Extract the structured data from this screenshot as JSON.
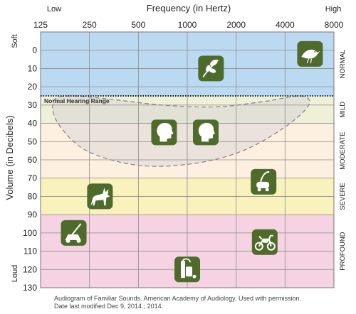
{
  "chart_data": {
    "type": "scatter",
    "title": "Frequency (in Hertz)",
    "ylabel": "Volume (in Decibels)",
    "x_scale": "log2",
    "x_ticks": [
      125,
      250,
      500,
      1000,
      2000,
      4000,
      8000
    ],
    "x_tick_labels": [
      "125",
      "250",
      "500",
      "1000",
      "2000",
      "4000",
      "8000"
    ],
    "x_end_labels": {
      "low": "Low",
      "high": "High"
    },
    "y_ticks": [
      0,
      10,
      20,
      30,
      40,
      50,
      60,
      70,
      80,
      90,
      100,
      110,
      120,
      130
    ],
    "y_tick_labels": [
      "0",
      "10",
      "20",
      "30",
      "40",
      "50",
      "60",
      "70",
      "80",
      "90",
      "100",
      "110",
      "120",
      "130"
    ],
    "y_end_labels": {
      "top": "Soft",
      "bottom": "Loud"
    },
    "ylim": [
      -10,
      130
    ],
    "xlim": [
      125,
      8000
    ],
    "y_inverted": true,
    "grid": true,
    "zones": [
      {
        "label": "NORMAL",
        "from": -10,
        "to": 25,
        "color": "#bcd9f2"
      },
      {
        "label": "MILD",
        "from": 25,
        "to": 40,
        "color": "#eef0d8"
      },
      {
        "label": "MODERATE",
        "from": 40,
        "to": 70,
        "color": "#fdf0e1"
      },
      {
        "label": "SEVERE",
        "from": 70,
        "to": 90,
        "color": "#f9f2bd"
      },
      {
        "label": "PROFOUND",
        "from": 90,
        "to": 130,
        "color": "#f6d3e2"
      }
    ],
    "threshold_line_db": 25,
    "normal_range": {
      "label": "Normal Hearing Range",
      "outline": [
        [
          190,
          25
        ],
        [
          150,
          28
        ],
        [
          160,
          40
        ],
        [
          240,
          55
        ],
        [
          500,
          63
        ],
        [
          1100,
          62
        ],
        [
          2200,
          55
        ],
        [
          4000,
          42
        ],
        [
          5600,
          30
        ],
        [
          5000,
          25
        ],
        [
          3000,
          28
        ],
        [
          1500,
          31
        ],
        [
          700,
          30
        ],
        [
          350,
          27
        ]
      ]
    },
    "points": [
      {
        "name": "birds-chirping",
        "icon": "leaf-icon",
        "x": 1400,
        "y": 10
      },
      {
        "name": "bird",
        "icon": "bird-icon",
        "x": 5700,
        "y": 2
      },
      {
        "name": "speech-1",
        "icon": "speaker-head-icon",
        "x": 720,
        "y": 45
      },
      {
        "name": "speech-2",
        "icon": "speaker-head-icon",
        "x": 1300,
        "y": 45
      },
      {
        "name": "vacuum-cleaner",
        "icon": "vacuum-icon",
        "x": 2950,
        "y": 72
      },
      {
        "name": "dog-barking",
        "icon": "wolf-icon",
        "x": 290,
        "y": 80
      },
      {
        "name": "lawn-mower",
        "icon": "lawnmower-icon",
        "x": 200,
        "y": 100
      },
      {
        "name": "motorcycle",
        "icon": "motorcycle-icon",
        "x": 3000,
        "y": 105
      },
      {
        "name": "chainsaw",
        "icon": "chainsaw-icon",
        "x": 1000,
        "y": 120
      }
    ],
    "icon_color": "#4e6b2c",
    "range_outline_color": "#8a7a8c"
  },
  "caption_lines": [
    "Audiogram of Familiar Sounds. American Academy of Audiology. Used with permission.",
    "Date last modified Dec 9, 2014.; 2014."
  ]
}
